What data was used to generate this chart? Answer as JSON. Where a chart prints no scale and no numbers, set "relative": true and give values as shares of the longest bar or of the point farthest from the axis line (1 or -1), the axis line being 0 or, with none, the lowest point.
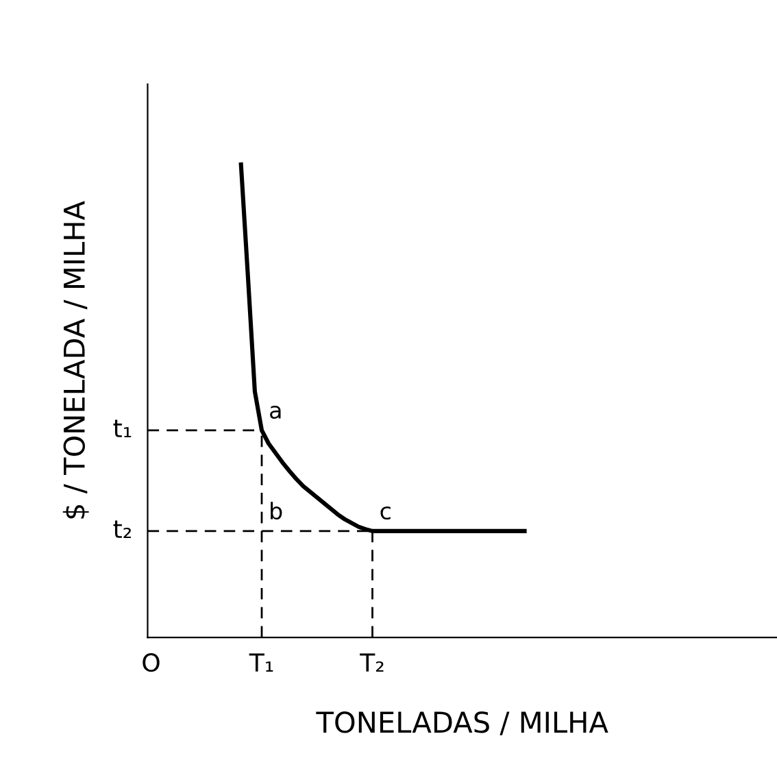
{
  "chart_data": {
    "type": "line",
    "relative": true,
    "xlabel": "TONELADAS / MILHA",
    "ylabel": "$ / TONELADA / MILHA",
    "categories": [
      "O",
      null,
      null,
      null,
      null,
      null,
      null,
      null,
      null,
      null,
      null,
      null,
      null,
      null,
      null,
      null,
      "T₁",
      null,
      null,
      null,
      null,
      null,
      null,
      null,
      null,
      null,
      null,
      null,
      null,
      null,
      null,
      null,
      "T₂",
      null,
      null,
      null,
      null,
      null,
      null,
      null,
      null,
      null,
      null,
      null,
      null,
      null,
      null,
      null,
      null,
      null,
      null,
      null,
      null,
      null,
      null,
      null,
      null,
      null,
      null,
      null,
      null,
      null,
      null,
      null,
      null,
      null,
      null,
      null,
      null,
      null,
      null,
      null,
      null,
      null,
      null,
      null,
      null,
      null,
      null,
      null,
      null,
      null,
      null,
      null,
      null,
      null,
      null,
      null,
      null,
      null,
      null
    ],
    "series": [
      {
        "color": "#000000",
        "values": [
          null,
          null,
          null,
          null,
          null,
          null,
          null,
          null,
          null,
          null,
          null,
          null,
          null,
          1,
          0.764,
          0.52,
          0.438,
          0.41,
          0.39,
          0.37,
          0.352,
          0.335,
          0.32,
          0.308,
          0.296,
          0.284,
          0.272,
          0.26,
          0.25,
          0.242,
          0.234,
          0.229,
          0.225,
          0.225,
          0.225,
          0.225,
          0.225,
          0.225,
          0.225,
          0.225,
          0.225,
          0.225,
          0.225,
          0.225,
          0.225,
          0.225,
          0.225,
          0.225,
          0.225,
          0.225,
          0.225,
          0.225,
          0.225,
          0.225,
          0.225,
          null,
          null,
          null,
          null,
          null,
          null,
          null,
          null,
          null,
          null,
          null,
          null,
          null,
          null,
          null,
          null,
          null,
          null,
          null,
          null,
          null,
          null,
          null,
          null,
          null,
          null,
          null,
          null,
          null,
          null,
          null,
          null,
          null,
          null,
          null,
          null
        ]
      }
    ],
    "ref_lines": [
      {
        "axis": "y",
        "value": 0.438,
        "label": "t₁",
        "line_style": "dashed",
        "color": "#000000"
      },
      {
        "axis": "y",
        "value": 0.225,
        "label": "t₂",
        "line_style": "dashed",
        "color": "#000000"
      }
    ],
    "annotations": [
      {
        "text": "a",
        "x": "T₁",
        "y": 0.438
      },
      {
        "text": "b",
        "x": "T₁",
        "y": 0.225
      },
      {
        "text": "c",
        "x": "T₂",
        "y": 0.225
      }
    ],
    "grid": false,
    "legend": false
  }
}
